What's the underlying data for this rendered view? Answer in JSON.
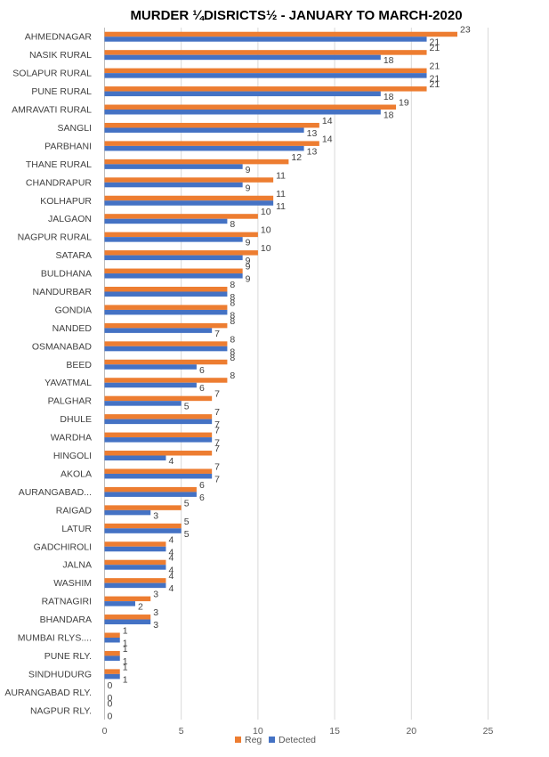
{
  "chart_data": {
    "type": "bar",
    "orientation": "horizontal",
    "title": "MURDER ¼DISRICTS½ -  JANUARY TO MARCH-2020",
    "categories": [
      "AHMEDNAGAR",
      "NASIK RURAL",
      "SOLAPUR RURAL",
      "PUNE RURAL",
      "AMRAVATI RURAL",
      "SANGLI",
      "PARBHANI",
      "THANE RURAL",
      "CHANDRAPUR",
      "KOLHAPUR",
      "JALGAON",
      "NAGPUR RURAL",
      "SATARA",
      "BULDHANA",
      "NANDURBAR",
      "GONDIA",
      "NANDED",
      "OSMANABAD",
      "BEED",
      "YAVATMAL",
      "PALGHAR",
      "DHULE",
      "WARDHA",
      "HINGOLI",
      "AKOLA",
      "AURANGABAD...",
      "RAIGAD",
      "LATUR",
      "GADCHIROLI",
      "JALNA",
      "WASHIM",
      "RATNAGIRI",
      "BHANDARA",
      "MUMBAI RLYS....",
      "PUNE RLY.",
      "SINDHUDURG",
      "AURANGABAD RLY.",
      "NAGPUR RLY."
    ],
    "series": [
      {
        "name": "Reg",
        "color": "#ED7D31",
        "values": [
          23,
          21,
          21,
          21,
          19,
          14,
          14,
          12,
          11,
          11,
          10,
          10,
          10,
          9,
          8,
          8,
          8,
          8,
          8,
          8,
          7,
          7,
          7,
          7,
          7,
          6,
          5,
          5,
          4,
          4,
          4,
          3,
          3,
          1,
          1,
          1,
          0,
          0
        ]
      },
      {
        "name": "Detected",
        "color": "#4472C4",
        "values": [
          21,
          18,
          21,
          18,
          18,
          13,
          13,
          9,
          9,
          11,
          8,
          9,
          9,
          9,
          8,
          8,
          7,
          8,
          6,
          6,
          5,
          7,
          7,
          4,
          7,
          6,
          3,
          5,
          4,
          4,
          4,
          2,
          3,
          1,
          1,
          1,
          0,
          0
        ]
      }
    ],
    "xlim": [
      0,
      25
    ],
    "xticks": [
      0,
      5,
      10,
      15,
      20,
      25
    ],
    "grid": true,
    "legend": "bottom"
  }
}
